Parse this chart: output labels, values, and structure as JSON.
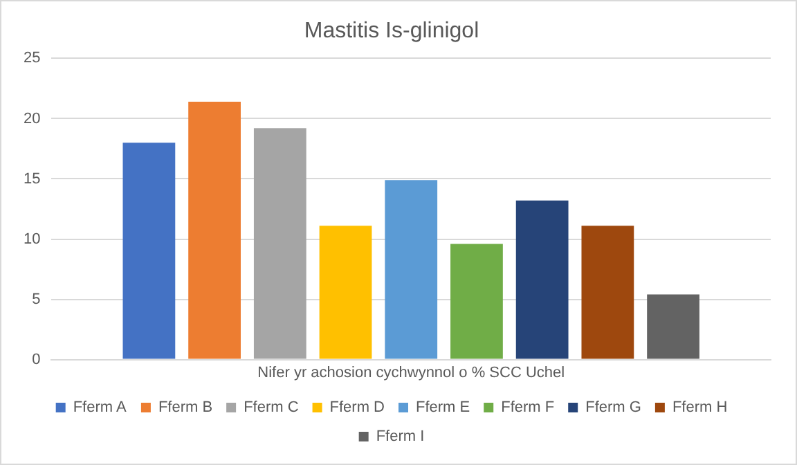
{
  "chart_data": {
    "type": "bar",
    "title": "Mastitis Is-glinigol",
    "categories": [
      "Nifer yr achosion cychwynnol o % SCC Uchel"
    ],
    "series": [
      {
        "name": "Fferm A",
        "color": "#4472c4",
        "values": [
          18.0
        ]
      },
      {
        "name": "Fferm B",
        "color": "#ed7d31",
        "values": [
          21.4
        ]
      },
      {
        "name": "Fferm C",
        "color": "#a5a5a5",
        "values": [
          19.2
        ]
      },
      {
        "name": "Fferm D",
        "color": "#ffc000",
        "values": [
          11.1
        ]
      },
      {
        "name": "Fferm E",
        "color": "#5b9bd5",
        "values": [
          14.9
        ]
      },
      {
        "name": "Fferm F",
        "color": "#70ad47",
        "values": [
          9.6
        ]
      },
      {
        "name": "Fferm G",
        "color": "#264478",
        "values": [
          13.2
        ]
      },
      {
        "name": "Fferm H",
        "color": "#9e480e",
        "values": [
          11.1
        ]
      },
      {
        "name": "Fferm I",
        "color": "#636363",
        "values": [
          5.4
        ]
      }
    ],
    "ylim": [
      0,
      25
    ],
    "yticks": [
      0,
      5,
      10,
      15,
      20,
      25
    ],
    "grid": "y",
    "legend": "bottom"
  }
}
